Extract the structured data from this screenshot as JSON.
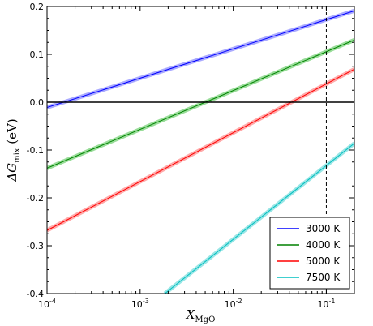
{
  "chart_data": {
    "type": "line",
    "title": "",
    "xlabel": {
      "base": "X",
      "sub": "MgO"
    },
    "ylabel": {
      "pre": "ΔG",
      "sub": "mix",
      "post": " (eV)"
    },
    "xscale": "log",
    "xlim": [
      0.0001,
      0.2
    ],
    "ylim": [
      -0.4,
      0.2
    ],
    "x_ticks": [
      {
        "value": 0.0001,
        "base": "10",
        "exp": "-4"
      },
      {
        "value": 0.001,
        "base": "10",
        "exp": "-3"
      },
      {
        "value": 0.01,
        "base": "10",
        "exp": "-2"
      },
      {
        "value": 0.1,
        "base": "10",
        "exp": "-1"
      }
    ],
    "y_ticks": [
      {
        "value": 0.2,
        "label": "0.2"
      },
      {
        "value": 0.1,
        "label": "0.1"
      },
      {
        "value": 0.0,
        "label": "0.0"
      },
      {
        "value": -0.1,
        "label": "-0.1"
      },
      {
        "value": -0.2,
        "label": "-0.2"
      },
      {
        "value": -0.3,
        "label": "-0.3"
      },
      {
        "value": -0.4,
        "label": "-0.4"
      }
    ],
    "grid": false,
    "reference_lines": [
      {
        "orientation": "horizontal",
        "value": 0.0,
        "style": "solid",
        "color": "#000000"
      },
      {
        "orientation": "vertical",
        "value": 0.1,
        "style": "dashed",
        "color": "#000000"
      }
    ],
    "legend": {
      "position": "bottom-right"
    },
    "series": [
      {
        "name": "3000 K",
        "color": "#0000ff",
        "band_color": "#aaaaff",
        "x": [
          0.0001,
          0.2
        ],
        "y": [
          -0.011,
          0.191
        ]
      },
      {
        "name": "4000 K",
        "color": "#008000",
        "band_color": "#99dd99",
        "x": [
          0.0001,
          0.2
        ],
        "y": [
          -0.138,
          0.13
        ]
      },
      {
        "name": "5000 K",
        "color": "#ff0000",
        "band_color": "#ffaaaa",
        "x": [
          0.0001,
          0.2
        ],
        "y": [
          -0.268,
          0.069
        ]
      },
      {
        "name": "7500 K",
        "color": "#00bfbf",
        "band_color": "#99e6e6",
        "x": [
          0.00184,
          0.2
        ],
        "y": [
          -0.4,
          -0.086
        ]
      }
    ]
  }
}
